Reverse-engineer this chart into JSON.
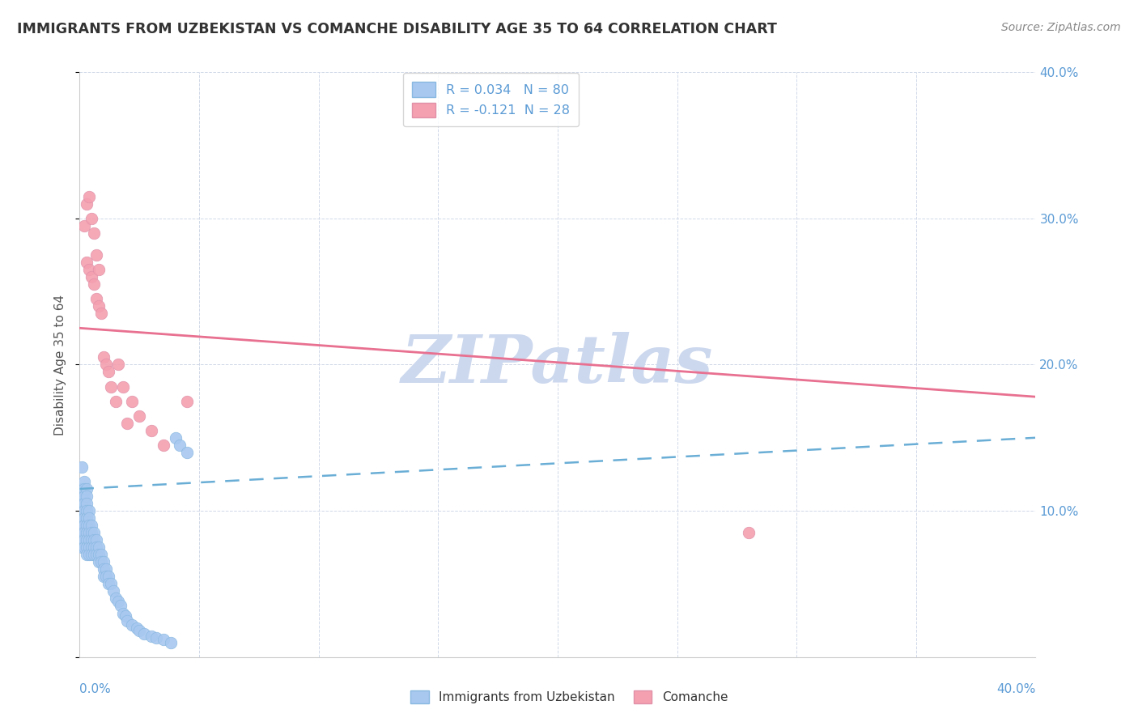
{
  "title": "IMMIGRANTS FROM UZBEKISTAN VS COMANCHE DISABILITY AGE 35 TO 64 CORRELATION CHART",
  "source": "Source: ZipAtlas.com",
  "ylabel": "Disability Age 35 to 64",
  "xlim": [
    0.0,
    0.4
  ],
  "ylim": [
    0.0,
    0.4
  ],
  "ytick_vals": [
    0.0,
    0.1,
    0.2,
    0.3,
    0.4
  ],
  "color_uzbekistan": "#a8c8f0",
  "color_comanche": "#f4a0b0",
  "color_uzbekistan_line": "#6aaed6",
  "color_comanche_line": "#e87090",
  "color_axis_labels": "#5b9bd5",
  "color_grid": "#d0d8e8",
  "watermark_text": "ZIPatlas",
  "watermark_color": "#ccd8ee",
  "uzbekistan_x": [
    0.001,
    0.001,
    0.001,
    0.001,
    0.001,
    0.001,
    0.001,
    0.001,
    0.001,
    0.001,
    0.002,
    0.002,
    0.002,
    0.002,
    0.002,
    0.002,
    0.002,
    0.002,
    0.002,
    0.002,
    0.003,
    0.003,
    0.003,
    0.003,
    0.003,
    0.003,
    0.003,
    0.003,
    0.003,
    0.003,
    0.004,
    0.004,
    0.004,
    0.004,
    0.004,
    0.004,
    0.004,
    0.005,
    0.005,
    0.005,
    0.005,
    0.005,
    0.006,
    0.006,
    0.006,
    0.006,
    0.007,
    0.007,
    0.007,
    0.008,
    0.008,
    0.008,
    0.009,
    0.009,
    0.01,
    0.01,
    0.01,
    0.011,
    0.011,
    0.012,
    0.012,
    0.013,
    0.014,
    0.015,
    0.016,
    0.017,
    0.018,
    0.019,
    0.02,
    0.022,
    0.024,
    0.025,
    0.027,
    0.03,
    0.032,
    0.035,
    0.038,
    0.04,
    0.042,
    0.045
  ],
  "uzbekistan_y": [
    0.13,
    0.115,
    0.11,
    0.105,
    0.1,
    0.095,
    0.09,
    0.085,
    0.08,
    0.075,
    0.12,
    0.115,
    0.11,
    0.105,
    0.1,
    0.095,
    0.09,
    0.085,
    0.08,
    0.075,
    0.115,
    0.11,
    0.105,
    0.1,
    0.095,
    0.09,
    0.085,
    0.08,
    0.075,
    0.07,
    0.1,
    0.095,
    0.09,
    0.085,
    0.08,
    0.075,
    0.07,
    0.09,
    0.085,
    0.08,
    0.075,
    0.07,
    0.085,
    0.08,
    0.075,
    0.07,
    0.08,
    0.075,
    0.07,
    0.075,
    0.07,
    0.065,
    0.07,
    0.065,
    0.065,
    0.06,
    0.055,
    0.06,
    0.055,
    0.055,
    0.05,
    0.05,
    0.045,
    0.04,
    0.038,
    0.035,
    0.03,
    0.028,
    0.025,
    0.022,
    0.02,
    0.018,
    0.016,
    0.014,
    0.013,
    0.012,
    0.01,
    0.15,
    0.145,
    0.14
  ],
  "comanche_x": [
    0.002,
    0.003,
    0.003,
    0.004,
    0.004,
    0.005,
    0.005,
    0.006,
    0.006,
    0.007,
    0.007,
    0.008,
    0.008,
    0.009,
    0.01,
    0.011,
    0.012,
    0.013,
    0.015,
    0.016,
    0.018,
    0.02,
    0.022,
    0.025,
    0.03,
    0.035,
    0.28,
    0.045
  ],
  "comanche_y": [
    0.295,
    0.31,
    0.27,
    0.315,
    0.265,
    0.3,
    0.26,
    0.29,
    0.255,
    0.275,
    0.245,
    0.265,
    0.24,
    0.235,
    0.205,
    0.2,
    0.195,
    0.185,
    0.175,
    0.2,
    0.185,
    0.16,
    0.175,
    0.165,
    0.155,
    0.145,
    0.085,
    0.175
  ],
  "uz_line_x": [
    0.0,
    0.4
  ],
  "uz_line_y": [
    0.115,
    0.15
  ],
  "com_line_x": [
    0.0,
    0.4
  ],
  "com_line_y": [
    0.225,
    0.178
  ]
}
